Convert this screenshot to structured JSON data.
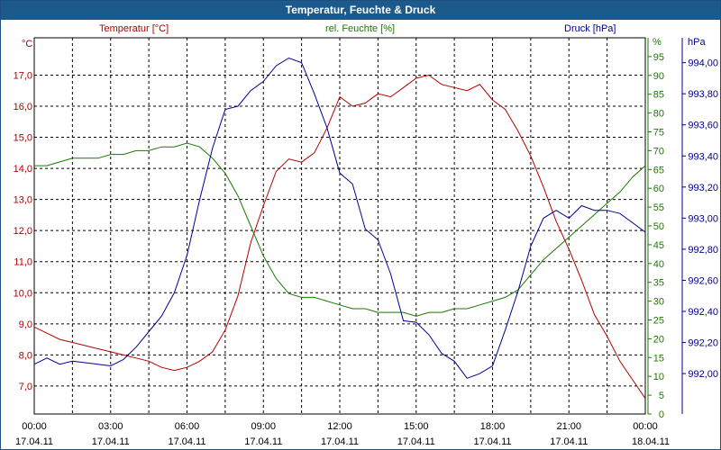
{
  "window": {
    "title": "Temperatur, Feuchte & Druck"
  },
  "colors": {
    "temperature": "#b00000",
    "humidity": "#1a7a00",
    "pressure": "#000090",
    "grid": "#000000",
    "title_bg": "#1d5a8c"
  },
  "chart_data": {
    "type": "line",
    "title": "Temperatur, Feuchte & Druck",
    "x_time_labels": [
      "00:00",
      "03:00",
      "06:00",
      "09:00",
      "12:00",
      "15:00",
      "18:00",
      "21:00",
      "00:00"
    ],
    "x_date_labels": [
      "17.04.11",
      "17.04.11",
      "17.04.11",
      "17.04.11",
      "17.04.11",
      "17.04.11",
      "17.04.11",
      "17.04.11",
      "18.04.11"
    ],
    "x_range_hours": [
      0,
      24
    ],
    "axes": {
      "left": {
        "unit": "°C",
        "series_label": "Temperatur [°C]",
        "range": [
          6.1,
          18.2
        ],
        "ticks": [
          "17,0",
          "16,0",
          "15,0",
          "14,0",
          "13,0",
          "12,0",
          "11,0",
          "10,0",
          "9,0",
          "8,0",
          "7,0"
        ],
        "tick_values": [
          17,
          16,
          15,
          14,
          13,
          12,
          11,
          10,
          9,
          8,
          7
        ]
      },
      "mid": {
        "unit": "%",
        "series_label": "rel. Feuchte [%]",
        "range": [
          0,
          100
        ],
        "ticks": [
          "95",
          "90",
          "85",
          "80",
          "75",
          "70",
          "65",
          "60",
          "55",
          "50",
          "45",
          "40",
          "35",
          "30",
          "25",
          "20",
          "15",
          "10",
          "5",
          "0"
        ],
        "tick_values": [
          95,
          90,
          85,
          80,
          75,
          70,
          65,
          60,
          55,
          50,
          45,
          40,
          35,
          30,
          25,
          20,
          15,
          10,
          5,
          0
        ]
      },
      "right": {
        "unit": "hPa",
        "series_label": "Druck [hPa]",
        "range": [
          991.74,
          994.16
        ],
        "ticks": [
          "994,00",
          "993,80",
          "993,60",
          "993,40",
          "993,20",
          "993,00",
          "992,80",
          "992,60",
          "992,40",
          "992,20",
          "992,00"
        ],
        "tick_values": [
          994,
          993.8,
          993.6,
          993.4,
          993.2,
          993,
          992.8,
          992.6,
          992.4,
          992.2,
          992
        ]
      }
    },
    "series": [
      {
        "name": "Temperatur [°C]",
        "axis": "left",
        "color": "#b00000",
        "x": [
          0,
          0.5,
          1,
          1.5,
          2,
          2.5,
          3,
          3.5,
          4,
          4.5,
          5,
          5.5,
          6,
          6.5,
          7,
          7.5,
          8,
          8.5,
          9,
          9.5,
          10,
          10.5,
          11,
          11.5,
          12,
          12.5,
          13,
          13.5,
          14,
          14.5,
          15,
          15.5,
          16,
          16.5,
          17,
          17.5,
          18,
          18.5,
          19,
          19.5,
          20,
          20.5,
          21,
          21.5,
          22,
          22.5,
          23,
          23.5,
          24
        ],
        "values": [
          8.9,
          8.7,
          8.5,
          8.4,
          8.3,
          8.2,
          8.1,
          8.0,
          7.9,
          7.8,
          7.6,
          7.5,
          7.6,
          7.8,
          8.1,
          8.8,
          9.9,
          11.6,
          12.8,
          13.9,
          14.3,
          14.2,
          14.5,
          15.3,
          16.3,
          16.0,
          16.1,
          16.4,
          16.3,
          16.6,
          16.9,
          17.0,
          16.7,
          16.6,
          16.5,
          16.7,
          16.2,
          15.9,
          15.2,
          14.4,
          13.4,
          12.3,
          11.4,
          10.4,
          9.3,
          8.6,
          7.8,
          7.2,
          6.6
        ]
      },
      {
        "name": "rel. Feuchte [%]",
        "axis": "mid",
        "color": "#1a7a00",
        "x": [
          0,
          0.5,
          1,
          1.5,
          2,
          2.5,
          3,
          3.5,
          4,
          4.5,
          5,
          5.5,
          6,
          6.5,
          7,
          7.5,
          8,
          8.5,
          9,
          9.5,
          10,
          10.5,
          11,
          11.5,
          12,
          12.5,
          13,
          13.5,
          14,
          14.5,
          15,
          15.5,
          16,
          16.5,
          17,
          17.5,
          18,
          18.5,
          19,
          19.5,
          20,
          20.5,
          21,
          21.5,
          22,
          22.5,
          23,
          23.5,
          24
        ],
        "values": [
          66,
          66,
          67,
          68,
          68,
          68,
          69,
          69,
          70,
          70,
          71,
          71,
          72,
          71,
          68,
          64,
          58,
          50,
          42,
          36,
          32,
          31,
          31,
          30,
          29,
          28,
          28,
          27,
          27,
          27,
          26,
          27,
          27,
          28,
          28,
          29,
          30,
          31,
          33,
          37,
          41,
          44,
          47,
          50,
          53,
          56,
          59,
          63,
          66
        ]
      },
      {
        "name": "Druck [hPa]",
        "axis": "right",
        "color": "#000090",
        "x": [
          0,
          0.5,
          1,
          1.5,
          2,
          2.5,
          3,
          3.5,
          4,
          4.5,
          5,
          5.5,
          6,
          6.5,
          7,
          7.5,
          8,
          8.5,
          9,
          9.5,
          10,
          10.5,
          11,
          11.5,
          12,
          12.5,
          13,
          13.5,
          14,
          14.5,
          15,
          15.5,
          16,
          16.5,
          17,
          17.5,
          18,
          18.5,
          19,
          19.5,
          20,
          20.5,
          21,
          21.5,
          22,
          22.5,
          23,
          23.5,
          24
        ],
        "values": [
          992.06,
          992.1,
          992.06,
          992.08,
          992.07,
          992.06,
          992.05,
          992.09,
          992.17,
          992.27,
          992.37,
          992.52,
          992.76,
          993.12,
          993.45,
          993.7,
          993.72,
          993.82,
          993.88,
          993.98,
          994.03,
          994.0,
          993.8,
          993.58,
          993.29,
          993.22,
          992.93,
          992.86,
          992.64,
          992.34,
          992.33,
          992.25,
          992.13,
          992.08,
          991.97,
          992.0,
          992.05,
          992.28,
          992.53,
          992.82,
          993.0,
          993.05,
          993.0,
          993.08,
          993.05,
          993.05,
          993.03,
          992.97,
          992.91
        ]
      }
    ]
  }
}
